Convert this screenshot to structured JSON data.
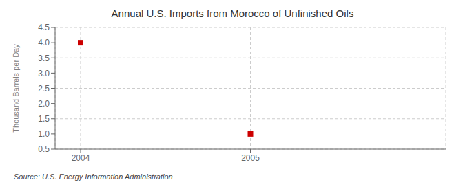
{
  "chart_data": {
    "type": "scatter",
    "title": "Annual U.S. Imports from Morocco of Unfinished Oils",
    "ylabel": "Thousand Barrels per Day",
    "source": "Source: U.S. Energy Information Administration",
    "x": [
      2004,
      2005
    ],
    "values": [
      4.0,
      1.0
    ],
    "color": "#cc0000",
    "marker": "square",
    "xlim": [
      2003.85,
      2006.15
    ],
    "xticks": [
      2004,
      2005
    ],
    "ylim": [
      0.5,
      4.5
    ],
    "yticks": [
      0.5,
      {
        "value": 1.0,
        "label": "1.0"
      },
      1.5,
      {
        "value": 2.0,
        "label": "2.0"
      },
      2.5,
      {
        "value": 3.0,
        "label": "3.0"
      },
      3.5,
      {
        "value": 4.0,
        "label": "4.0"
      },
      4.5
    ],
    "grid": true
  }
}
